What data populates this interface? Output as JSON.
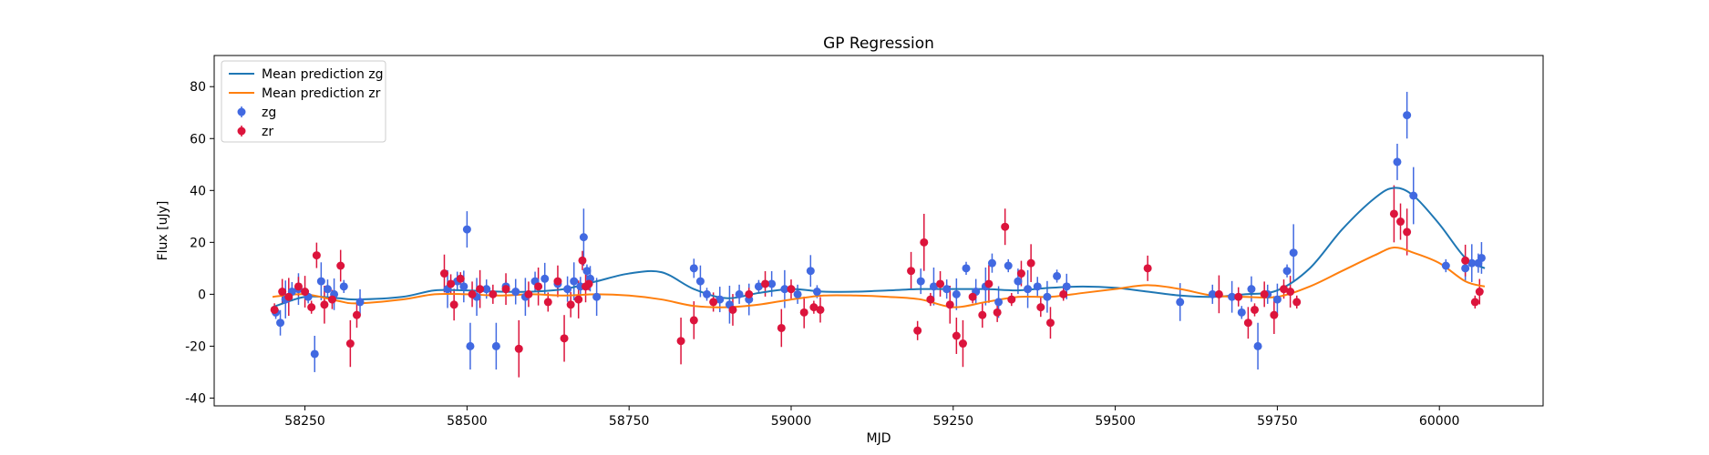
{
  "chart_data": {
    "type": "scatter",
    "title": "GP Regression",
    "xlabel": "MJD",
    "ylabel": "Flux [uJy]",
    "xlim": [
      58110,
      60160
    ],
    "ylim": [
      -43,
      92
    ],
    "xticks": [
      58250,
      58500,
      58750,
      59000,
      59250,
      59500,
      59750,
      60000
    ],
    "yticks": [
      -40,
      -20,
      0,
      20,
      40,
      60,
      80
    ],
    "grid": false,
    "legend_position": "top-left",
    "lines": [
      {
        "name": "Mean prediction zg",
        "color": "#1f77b4",
        "x": [
          58200,
          58250,
          58300,
          58330,
          58400,
          58450,
          58500,
          58550,
          58600,
          58650,
          58700,
          58750,
          58800,
          58850,
          58900,
          58950,
          59000,
          59050,
          59100,
          59150,
          59200,
          59250,
          59300,
          59350,
          59400,
          59450,
          59500,
          59550,
          59600,
          59650,
          59700,
          59750,
          59800,
          59850,
          59900,
          59930,
          59960,
          60000,
          60040,
          60070
        ],
        "y": [
          -5,
          -1,
          -1.5,
          -2,
          -1,
          1.5,
          1.5,
          1,
          1,
          2,
          5,
          8,
          8.5,
          2,
          -1.5,
          0.5,
          2,
          1,
          1,
          1.5,
          2,
          2,
          2,
          1.5,
          2.5,
          3,
          2.5,
          1,
          -0.5,
          -1,
          0,
          1.5,
          10,
          25,
          37,
          41,
          38,
          27,
          14,
          10
        ]
      },
      {
        "name": "Mean prediction zr",
        "color": "#ff7f0e",
        "x": [
          58200,
          58250,
          58300,
          58330,
          58400,
          58450,
          58500,
          58550,
          58600,
          58650,
          58700,
          58750,
          58800,
          58850,
          58900,
          58950,
          59000,
          59050,
          59100,
          59150,
          59200,
          59250,
          59300,
          59350,
          59400,
          59450,
          59500,
          59550,
          59600,
          59650,
          59700,
          59750,
          59800,
          59850,
          59900,
          59930,
          59960,
          60000,
          60040,
          60070
        ],
        "y": [
          -1,
          0,
          -2.5,
          -3.5,
          -2,
          0,
          0,
          -0.5,
          0,
          -0.5,
          0,
          -0.5,
          -2,
          -4.5,
          -5,
          -4,
          -2,
          -0.5,
          -0.5,
          -1,
          -2,
          -5,
          -3,
          -1,
          -1,
          0.5,
          2,
          3.5,
          2,
          -0.5,
          -1,
          -1,
          3,
          9,
          15,
          18,
          16,
          12,
          5,
          3
        ]
      }
    ],
    "series": [
      {
        "name": "zg",
        "color": "#4169e1",
        "x": [
          58205,
          58212,
          58220,
          58230,
          58240,
          58255,
          58265,
          58275,
          58285,
          58295,
          58310,
          58335,
          58470,
          58485,
          58495,
          58500,
          58505,
          58515,
          58530,
          58545,
          58560,
          58575,
          58590,
          58605,
          58620,
          58640,
          58655,
          58665,
          58675,
          58680,
          58685,
          58690,
          58700,
          58850,
          58860,
          58870,
          58890,
          58905,
          58920,
          58935,
          58950,
          58970,
          58990,
          59010,
          59030,
          59040,
          59200,
          59220,
          59240,
          59255,
          59270,
          59285,
          59300,
          59310,
          59320,
          59335,
          59350,
          59365,
          59380,
          59395,
          59410,
          59425,
          59600,
          59650,
          59680,
          59695,
          59710,
          59720,
          59735,
          59750,
          59765,
          59775,
          59935,
          59950,
          59960,
          60010,
          60040,
          60050,
          60060,
          60065
        ],
        "y": [
          -7,
          -11,
          -2,
          1,
          2,
          -1,
          -23,
          5,
          2,
          0,
          3,
          -3,
          2,
          5,
          3,
          25,
          -20,
          -1,
          2,
          -20,
          3,
          1,
          -1,
          5,
          6,
          4,
          2,
          5,
          3,
          22,
          9,
          6,
          -1,
          10,
          5,
          0,
          -2,
          -4,
          0,
          -2,
          3,
          4,
          2,
          0,
          9,
          1,
          5,
          3,
          2,
          0,
          10,
          1,
          3,
          12,
          -3,
          11,
          5,
          2,
          3,
          -1,
          7,
          3,
          -3,
          0,
          -1,
          -7,
          2,
          -20,
          0,
          -2,
          9,
          16,
          51,
          69,
          38,
          11,
          10,
          12,
          12,
          14
        ]
      },
      {
        "name": "zr",
        "color": "#dc143c",
        "x": [
          58203,
          58215,
          58225,
          58240,
          58250,
          58260,
          58268,
          58280,
          58292,
          58305,
          58320,
          58330,
          58465,
          58475,
          58480,
          58490,
          58508,
          58520,
          58540,
          58560,
          58580,
          58595,
          58610,
          58625,
          58640,
          58650,
          58660,
          58672,
          58678,
          58683,
          58688,
          58830,
          58850,
          58880,
          58910,
          58935,
          58960,
          58985,
          59000,
          59020,
          59035,
          59045,
          59185,
          59195,
          59205,
          59215,
          59230,
          59245,
          59255,
          59265,
          59280,
          59295,
          59305,
          59318,
          59330,
          59340,
          59355,
          59370,
          59385,
          59400,
          59420,
          59550,
          59660,
          59690,
          59705,
          59715,
          59730,
          59745,
          59760,
          59770,
          59780,
          59930,
          59940,
          59950,
          60040,
          60055,
          60062
        ],
        "y": [
          -6,
          1,
          -1,
          3,
          1,
          -5,
          15,
          -4,
          -2,
          11,
          -19,
          -8,
          8,
          4,
          -4,
          6,
          0,
          2,
          0,
          2,
          -21,
          0,
          3,
          -3,
          5,
          -17,
          -4,
          -2,
          13,
          3,
          4,
          -18,
          -10,
          -3,
          -6,
          0,
          4,
          -13,
          2,
          -7,
          -5,
          -6,
          9,
          -14,
          20,
          -2,
          4,
          -4,
          -16,
          -19,
          -1,
          -8,
          4,
          -7,
          26,
          -2,
          8,
          12,
          -5,
          -11,
          0,
          10,
          0,
          -1,
          -11,
          -6,
          0,
          -8,
          2,
          1,
          -3,
          31,
          28,
          24,
          13,
          -3,
          1
        ]
      }
    ]
  }
}
